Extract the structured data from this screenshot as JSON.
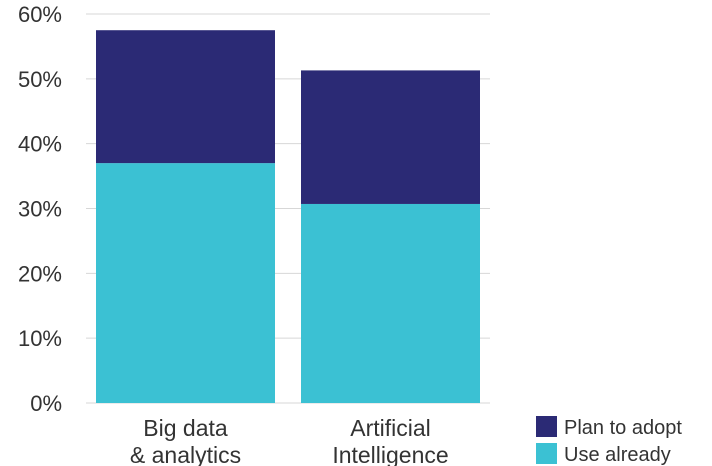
{
  "chart_data": {
    "type": "bar",
    "stacked": true,
    "categories": [
      [
        "Big data",
        "& analytics"
      ],
      [
        "Artificial",
        "Intelligence"
      ]
    ],
    "series": [
      {
        "name": "Use already",
        "values": [
          37,
          30.7
        ],
        "color": "#3bc1d3"
      },
      {
        "name": "Plan to adopt",
        "values": [
          20.5,
          20.6
        ],
        "color": "#2b2a75"
      }
    ],
    "yticks": [
      "0%",
      "10%",
      "20%",
      "30%",
      "40%",
      "50%",
      "60%"
    ],
    "ylim": [
      0,
      60
    ],
    "grid": true,
    "legend": {
      "placement": "bottom-right",
      "items": [
        {
          "label": "Plan to adopt",
          "color": "#2b2a75"
        },
        {
          "label": "Use already",
          "color": "#3bc1d3"
        }
      ]
    }
  }
}
